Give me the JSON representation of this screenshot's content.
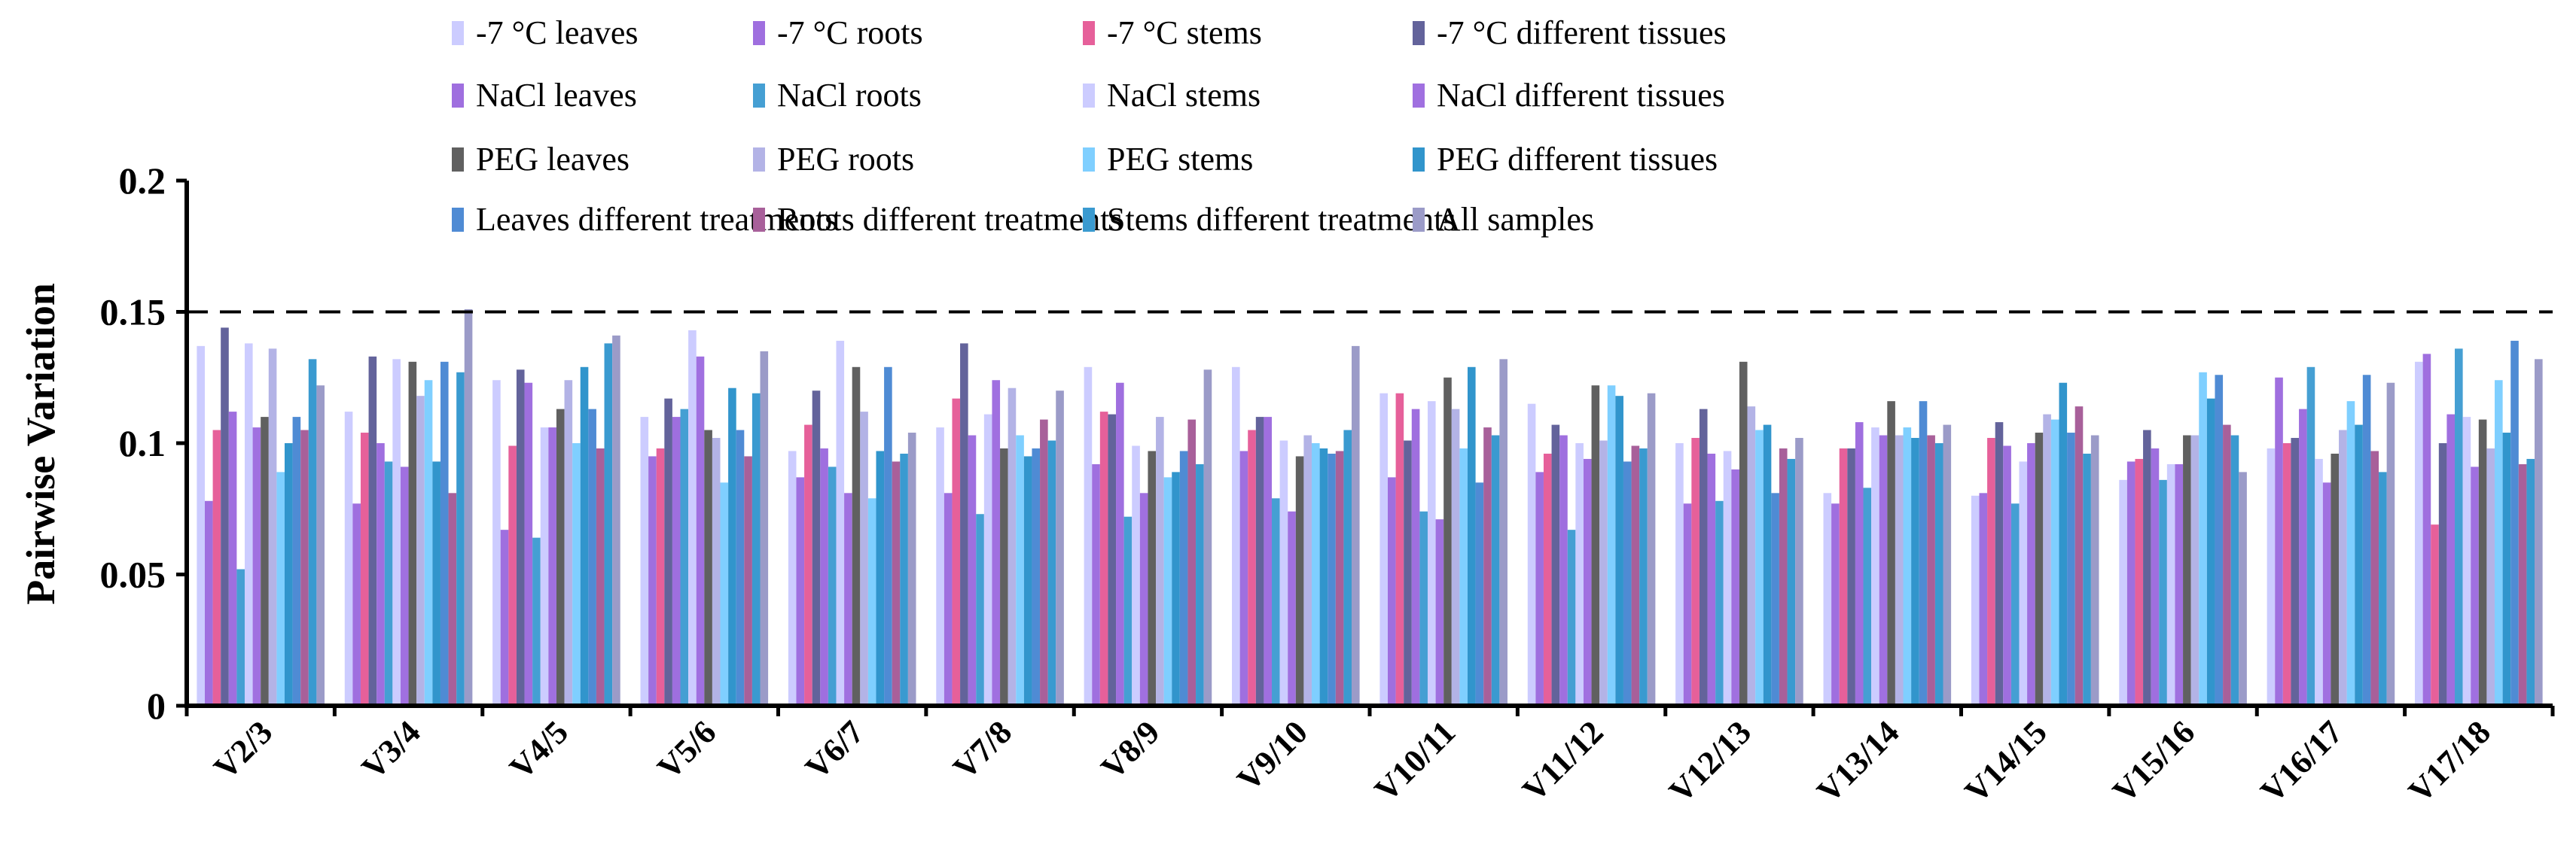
{
  "chart_data": {
    "type": "bar",
    "title": "",
    "xlabel": "",
    "ylabel": "Pairwise Variation",
    "ylim": [
      0,
      0.2
    ],
    "yticks": [
      "0",
      "0.05",
      "0.1",
      "0.15",
      "0.2"
    ],
    "threshold": 0.15,
    "legend_position": "top",
    "categories": [
      "V2/3",
      "V3/4",
      "V4/5",
      "V5/6",
      "V6/7",
      "V7/8",
      "V8/9",
      "V9/10",
      "V10/11",
      "V11/12",
      "V12/13",
      "V13/14",
      "V14/15",
      "V15/16",
      "V16/17",
      "V17/18"
    ],
    "series": [
      {
        "name": "-7 °C leaves",
        "color": "#ccccff",
        "values": [
          0.137,
          0.112,
          0.124,
          0.11,
          0.097,
          0.106,
          0.129,
          0.129,
          0.119,
          0.115,
          0.1,
          0.081,
          0.08,
          0.086,
          0.098,
          0.131
        ]
      },
      {
        "name": "-7 °C roots",
        "color": "#9f6fdf",
        "values": [
          0.078,
          0.077,
          0.067,
          0.095,
          0.087,
          0.081,
          0.092,
          0.097,
          0.087,
          0.089,
          0.077,
          0.077,
          0.081,
          0.093,
          0.125,
          0.134
        ]
      },
      {
        "name": "-7 °C stems",
        "color": "#e6609a",
        "values": [
          0.105,
          0.104,
          0.099,
          0.098,
          0.107,
          0.117,
          0.112,
          0.105,
          0.119,
          0.096,
          0.102,
          0.098,
          0.102,
          0.094,
          0.1,
          0.069
        ]
      },
      {
        "name": "-7 °C different tissues",
        "color": "#63639b",
        "values": [
          0.144,
          0.133,
          0.128,
          0.117,
          0.12,
          0.138,
          0.111,
          0.11,
          0.101,
          0.107,
          0.113,
          0.098,
          0.108,
          0.105,
          0.102,
          0.1
        ]
      },
      {
        "name": "NaCl leaves",
        "color": "#9f6fdf",
        "values": [
          0.112,
          0.1,
          0.123,
          0.11,
          0.098,
          0.103,
          0.123,
          0.11,
          0.113,
          0.103,
          0.096,
          0.108,
          0.099,
          0.098,
          0.113,
          0.111
        ]
      },
      {
        "name": "NaCl roots",
        "color": "#459fd3",
        "values": [
          0.052,
          0.093,
          0.064,
          0.113,
          0.091,
          0.073,
          0.072,
          0.079,
          0.074,
          0.067,
          0.078,
          0.083,
          0.077,
          0.086,
          0.129,
          0.136
        ]
      },
      {
        "name": "NaCl stems",
        "color": "#ccccff",
        "values": [
          0.138,
          0.132,
          0.106,
          0.143,
          0.139,
          0.111,
          0.099,
          0.101,
          0.116,
          0.1,
          0.097,
          0.106,
          0.093,
          0.092,
          0.094,
          0.11
        ]
      },
      {
        "name": "NaCl different tissues",
        "color": "#a070e0",
        "values": [
          0.106,
          0.091,
          0.106,
          0.133,
          0.081,
          0.124,
          0.081,
          0.074,
          0.071,
          0.094,
          0.09,
          0.103,
          0.1,
          0.092,
          0.085,
          0.091
        ]
      },
      {
        "name": "PEG leaves",
        "color": "#606060",
        "values": [
          0.11,
          0.131,
          0.113,
          0.105,
          0.129,
          0.098,
          0.097,
          0.095,
          0.125,
          0.122,
          0.131,
          0.116,
          0.104,
          0.103,
          0.096,
          0.109
        ]
      },
      {
        "name": "PEG roots",
        "color": "#b3b3e6",
        "values": [
          0.136,
          0.118,
          0.124,
          0.102,
          0.112,
          0.121,
          0.11,
          0.103,
          0.113,
          0.101,
          0.114,
          0.103,
          0.111,
          0.103,
          0.105,
          0.098
        ]
      },
      {
        "name": "PEG stems",
        "color": "#7fcfff",
        "values": [
          0.089,
          0.124,
          0.1,
          0.085,
          0.079,
          0.103,
          0.087,
          0.1,
          0.098,
          0.122,
          0.105,
          0.106,
          0.109,
          0.127,
          0.116,
          0.124
        ]
      },
      {
        "name": "PEG different tissues",
        "color": "#3195cc",
        "values": [
          0.1,
          0.093,
          0.129,
          0.121,
          0.097,
          0.095,
          0.089,
          0.098,
          0.129,
          0.118,
          0.107,
          0.102,
          0.123,
          0.117,
          0.107,
          0.104
        ]
      },
      {
        "name": "Leaves different treatments",
        "color": "#4f8bd4",
        "values": [
          0.11,
          0.131,
          0.113,
          0.105,
          0.129,
          0.098,
          0.097,
          0.096,
          0.085,
          0.093,
          0.081,
          0.116,
          0.104,
          0.126,
          0.126,
          0.139
        ]
      },
      {
        "name": "Roots different treatments",
        "color": "#a8609a",
        "values": [
          0.105,
          0.081,
          0.098,
          0.095,
          0.093,
          0.109,
          0.109,
          0.097,
          0.106,
          0.099,
          0.098,
          0.103,
          0.114,
          0.107,
          0.097,
          0.092
        ]
      },
      {
        "name": "Stems different treatments",
        "color": "#3a9ad0",
        "values": [
          0.132,
          0.127,
          0.138,
          0.119,
          0.096,
          0.101,
          0.092,
          0.105,
          0.103,
          0.098,
          0.094,
          0.1,
          0.096,
          0.103,
          0.089,
          0.094
        ]
      },
      {
        "name": "All samples",
        "color": "#9b9bc8",
        "values": [
          0.122,
          0.151,
          0.141,
          0.135,
          0.104,
          0.12,
          0.128,
          0.137,
          0.132,
          0.119,
          0.102,
          0.107,
          0.103,
          0.089,
          0.123,
          0.132
        ]
      }
    ]
  }
}
